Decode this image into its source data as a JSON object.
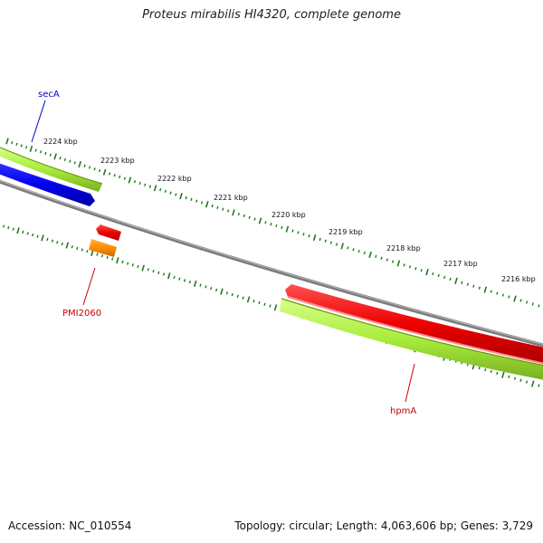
{
  "title": "Proteus mirabilis HI4320, complete genome",
  "footer": {
    "accession": "Accession: NC_010554",
    "summary": "Topology: circular; Length: 4,063,606 bp; Genes: 3,729"
  },
  "ruler": {
    "labels": [
      "2224 kbp",
      "2223 kbp",
      "2222 kbp",
      "2221 kbp",
      "2220 kbp",
      "2219 kbp",
      "2218 kbp",
      "2217 kbp",
      "2216 kbp"
    ],
    "tick_color": "#1e7a1e"
  },
  "genes": [
    {
      "name": "secA",
      "color": "#0000cc"
    },
    {
      "name": "PMI2060",
      "color": "#cc0000"
    },
    {
      "name": "hpmA",
      "color": "#cc0000"
    }
  ],
  "colors": {
    "backbone": "#808080",
    "cds_forward": "#ee1111",
    "cds_reverse": "#0000ee",
    "orf_highlight": "#a8ec3c",
    "orange_feature": "#ff8c00"
  }
}
